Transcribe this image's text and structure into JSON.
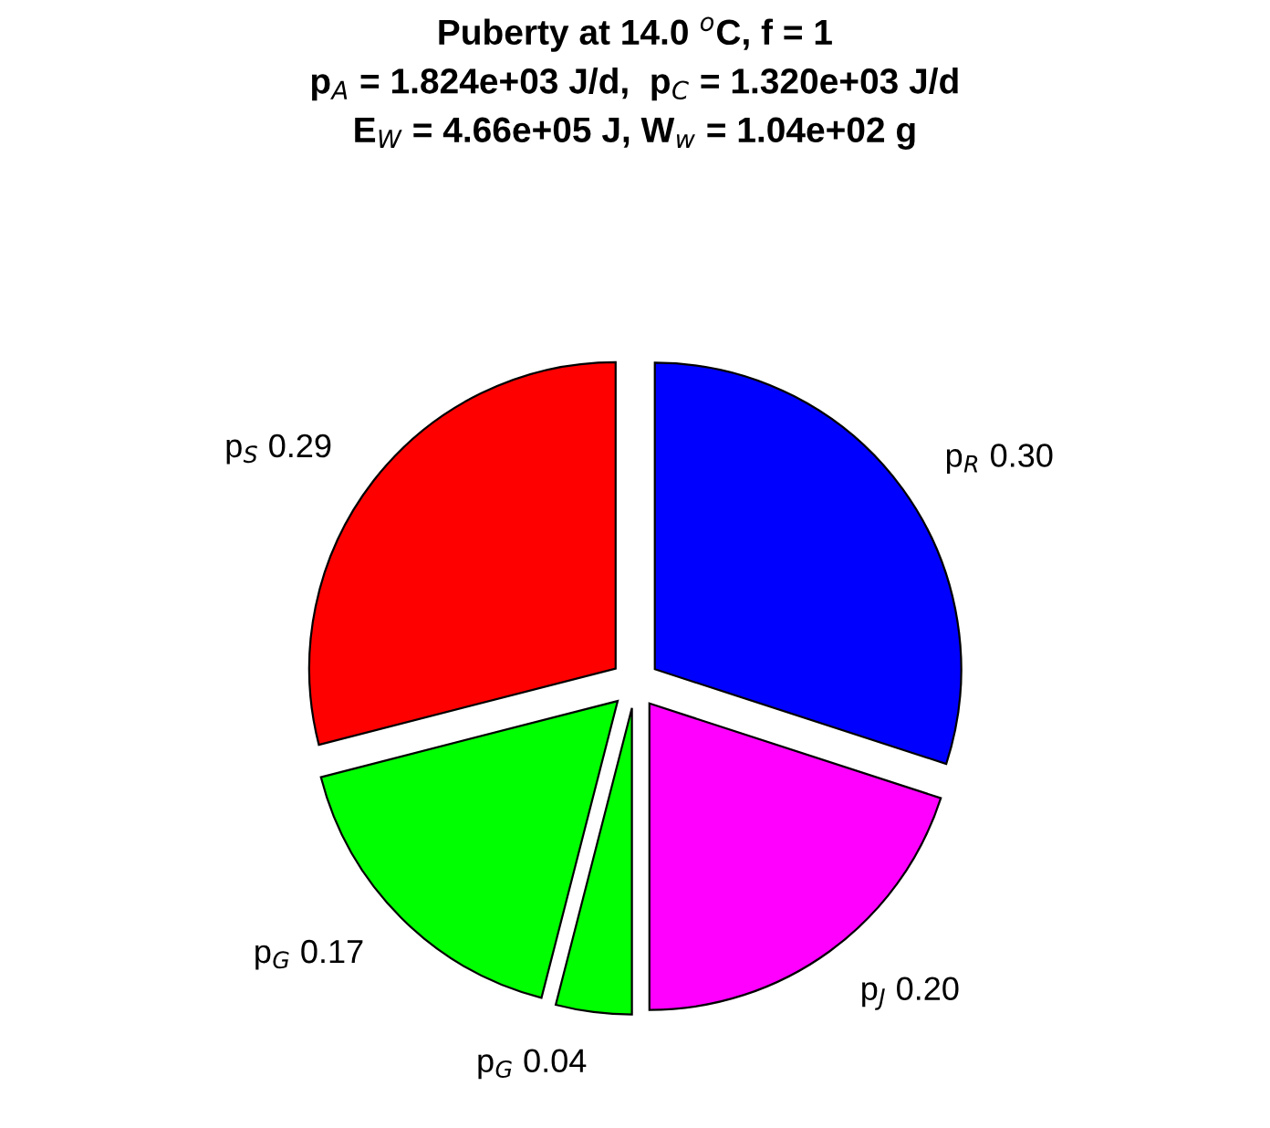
{
  "chart_data": {
    "type": "pie",
    "title": "Puberty at 14.0 $^{o}$C, f = 1\np$_{A}$ = 1.824e+03 J/d,  p$_{C}$ = 1.320e+03 J/d\nE$_{W}$ = 4.66e+05 J, W$_{w}$ = 1.04e+02 g",
    "categories": [
      "p$_{R}$",
      "p$_{J}$",
      "p$_{G}$",
      "p$_{G}$",
      "p$_{S}$"
    ],
    "values": [
      0.3,
      0.2,
      0.04,
      0.17,
      0.29
    ],
    "value_labels": [
      "0.30",
      "0.20",
      "0.04",
      "0.17",
      "0.29"
    ],
    "colors": [
      "#0000ff",
      "#ff00ff",
      "#00ff00",
      "#00ff00",
      "#ff0000"
    ]
  }
}
